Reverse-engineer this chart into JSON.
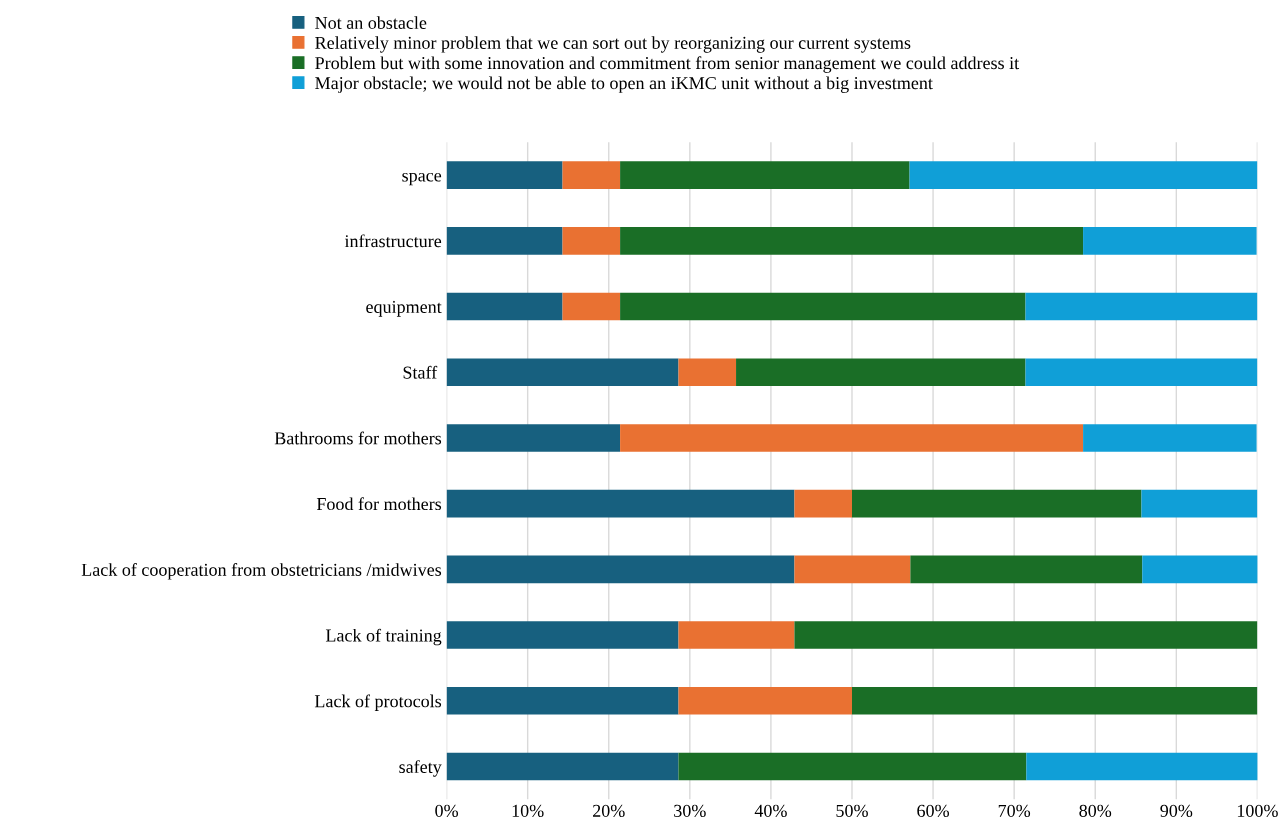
{
  "chart_data": {
    "type": "bar",
    "orientation": "horizontal",
    "stacked": true,
    "categories": [
      "space",
      "infrastructure",
      "equipment",
      "Staff ",
      "Bathrooms for mothers",
      "Food for mothers",
      "Lack of cooperation from obstetricians /midwives",
      "Lack of training",
      "Lack of protocols",
      "safety"
    ],
    "series": [
      {
        "name": "Not an obstacle",
        "color": "#17607f",
        "values": [
          14.3,
          14.3,
          14.3,
          28.6,
          21.4,
          42.9,
          42.9,
          28.6,
          28.6,
          28.6
        ]
      },
      {
        "name": "Relatively minor problem that we can sort out by reorganizing our current systems",
        "color": "#e97132",
        "values": [
          7.1,
          7.1,
          7.1,
          7.1,
          57.1,
          7.1,
          14.3,
          14.3,
          21.4,
          0
        ]
      },
      {
        "name": "Problem but with some innovation and commitment from senior management we could address it",
        "color": "#1a6e26",
        "values": [
          35.7,
          57.1,
          50.0,
          35.7,
          0,
          35.7,
          28.6,
          57.1,
          50.0,
          42.9
        ]
      },
      {
        "name": "Major obstacle; we would not be able to open an iKMC unit without a big investment",
        "color": "#109fd7",
        "values": [
          42.9,
          21.4,
          28.6,
          28.6,
          21.4,
          14.3,
          14.3,
          0,
          0,
          28.6
        ]
      }
    ],
    "xlim": [
      0,
      100
    ],
    "xticks": [
      {
        "value": 0,
        "label": "0%"
      },
      {
        "value": 10,
        "label": "10%"
      },
      {
        "value": 20,
        "label": "20%"
      },
      {
        "value": 30,
        "label": "30%"
      },
      {
        "value": 40,
        "label": "40%"
      },
      {
        "value": 50,
        "label": "50%"
      },
      {
        "value": 60,
        "label": "60%"
      },
      {
        "value": 70,
        "label": "70%"
      },
      {
        "value": 80,
        "label": "80%"
      },
      {
        "value": 90,
        "label": "90%"
      },
      {
        "value": 100,
        "label": "100%"
      }
    ],
    "grid": "x",
    "legend": "top"
  }
}
